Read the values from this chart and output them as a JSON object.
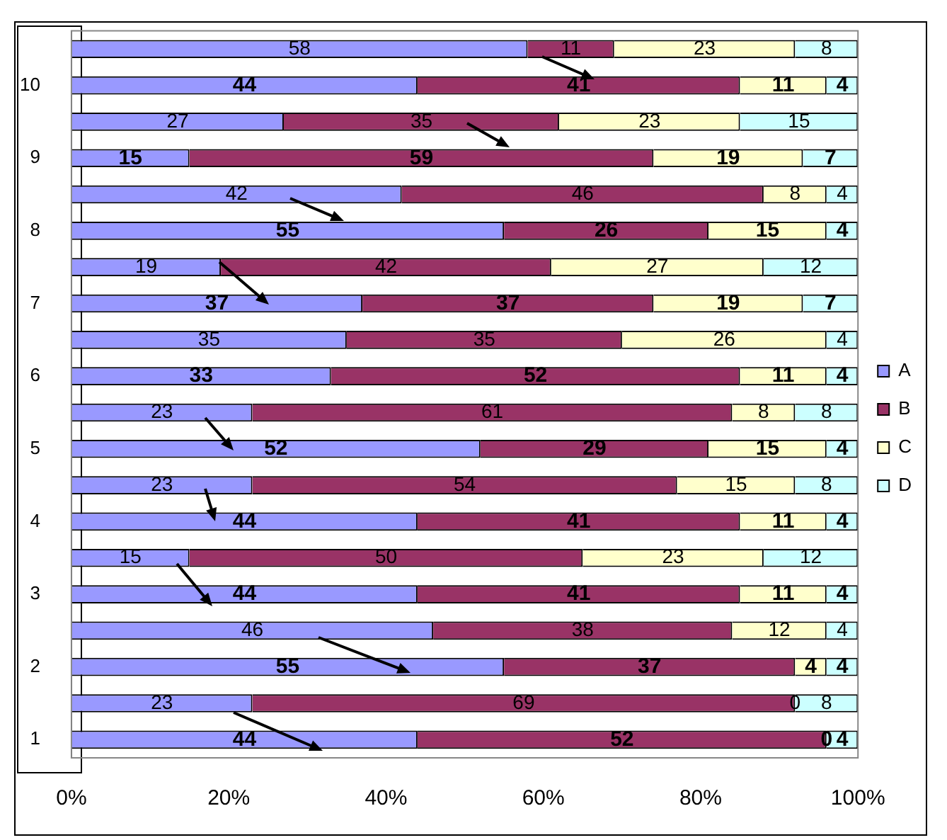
{
  "chart_data": {
    "type": "bar",
    "orientation": "horizontal",
    "stacked": true,
    "data_labels": true,
    "legend": "right",
    "grid": false,
    "categories": [
      null,
      "10",
      null,
      "9",
      null,
      "8",
      null,
      "7",
      null,
      "6",
      null,
      "5",
      null,
      "4",
      null,
      "3",
      null,
      "2",
      null,
      "1"
    ],
    "xlim": [
      0,
      100
    ],
    "xticks": [
      {
        "value": 0,
        "label": "0%"
      },
      {
        "value": 20,
        "label": "20%"
      },
      {
        "value": 40,
        "label": "40%"
      },
      {
        "value": 60,
        "label": "60%"
      },
      {
        "value": 80,
        "label": "80%"
      },
      {
        "value": 100,
        "label": "100%"
      }
    ],
    "series": [
      {
        "name": "A",
        "color": "#9999ff",
        "values": [
          58,
          44,
          27,
          15,
          42,
          55,
          19,
          37,
          35,
          33,
          23,
          52,
          23,
          44,
          15,
          44,
          46,
          55,
          23,
          44
        ]
      },
      {
        "name": "B",
        "color": "#993366",
        "values": [
          11,
          41,
          35,
          59,
          46,
          26,
          42,
          37,
          35,
          52,
          61,
          29,
          54,
          41,
          50,
          41,
          38,
          37,
          69,
          52
        ]
      },
      {
        "name": "C",
        "color": "#ffffcc",
        "values": [
          23,
          11,
          23,
          19,
          8,
          15,
          27,
          19,
          26,
          11,
          8,
          15,
          15,
          11,
          23,
          11,
          12,
          4,
          0,
          0
        ]
      },
      {
        "name": "D",
        "color": "#ccffff",
        "values": [
          8,
          4,
          15,
          7,
          4,
          4,
          12,
          7,
          4,
          4,
          8,
          4,
          8,
          4,
          12,
          4,
          4,
          4,
          8,
          4
        ]
      }
    ]
  }
}
